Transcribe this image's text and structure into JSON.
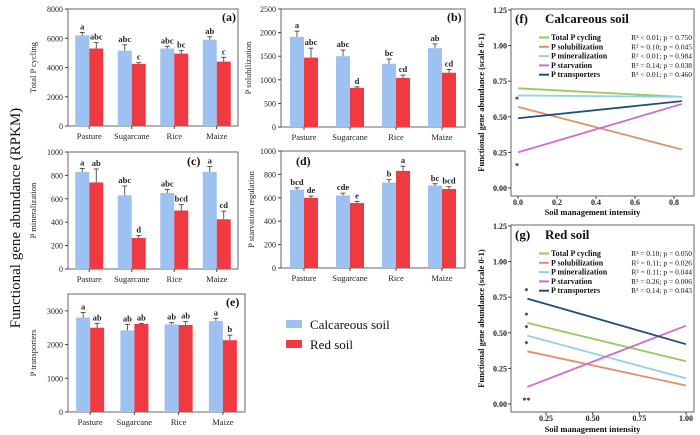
{
  "figure": {
    "shared_ylabel": "Functional gene abundance (RPKM)",
    "legend": [
      {
        "label": "Calcareous soil",
        "color": "#9dc2f2"
      },
      {
        "label": "Red soil",
        "color": "#ef3a42"
      }
    ]
  },
  "chart_data": [
    {
      "type": "bar",
      "panel": "(a)",
      "ylabel": "Total P cycling",
      "categories": [
        "Pasture",
        "Sugarcane",
        "Rice",
        "Maize"
      ],
      "ylim": [
        0,
        8000
      ],
      "yticks": [
        0,
        2000,
        4000,
        6000,
        8000
      ],
      "series": [
        {
          "name": "Calcareous soil",
          "values": [
            6200,
            5150,
            5300,
            5900
          ],
          "errors": [
            200,
            400,
            150,
            200
          ],
          "letters": [
            "a",
            "abc",
            "abc",
            "ab"
          ]
        },
        {
          "name": "Red soil",
          "values": [
            5300,
            4250,
            4950,
            4400
          ],
          "errors": [
            400,
            80,
            200,
            300
          ],
          "letters": [
            "abc",
            "c",
            "bc",
            "c"
          ]
        }
      ]
    },
    {
      "type": "bar",
      "panel": "(b)",
      "ylabel": "P solubilization",
      "categories": [
        "Pasture",
        "Sugarcane",
        "Rice",
        "Maize"
      ],
      "ylim": [
        0,
        2500
      ],
      "yticks": [
        0,
        500,
        1000,
        1500,
        2000,
        2500
      ],
      "series": [
        {
          "name": "Calcareous soil",
          "values": [
            1910,
            1500,
            1340,
            1670
          ],
          "errors": [
            120,
            130,
            100,
            90
          ],
          "letters": [
            "a",
            "abc",
            "bc",
            "ab"
          ]
        },
        {
          "name": "Red soil",
          "values": [
            1470,
            830,
            1040,
            1150
          ],
          "errors": [
            200,
            20,
            60,
            70
          ],
          "letters": [
            "abc",
            "d",
            "cd",
            "cd"
          ]
        }
      ]
    },
    {
      "type": "bar",
      "panel": "(c)",
      "ylabel": "P mineralization",
      "categories": [
        "Pasture",
        "Sugarcane",
        "Rice",
        "Maize"
      ],
      "ylim": [
        0,
        1000
      ],
      "yticks": [
        0,
        200,
        400,
        600,
        800,
        1000
      ],
      "series": [
        {
          "name": "Calcareous soil",
          "values": [
            830,
            630,
            650,
            830
          ],
          "errors": [
            30,
            80,
            30,
            45
          ],
          "letters": [
            "a",
            "abc",
            "abc",
            "a"
          ]
        },
        {
          "name": "Red soil",
          "values": [
            740,
            265,
            500,
            425
          ],
          "errors": [
            115,
            20,
            50,
            70
          ],
          "letters": [
            "ab",
            "d",
            "bcd",
            "cd"
          ]
        }
      ]
    },
    {
      "type": "bar",
      "panel": "(d)",
      "ylabel": "P starvation regulation",
      "categories": [
        "Pasture",
        "Sugarcane",
        "Rice",
        "Maize"
      ],
      "ylim": [
        0,
        1000
      ],
      "yticks": [
        0,
        200,
        400,
        600,
        800,
        1000
      ],
      "series": [
        {
          "name": "Calcareous soil",
          "values": [
            670,
            620,
            730,
            705
          ],
          "errors": [
            15,
            20,
            25,
            15
          ],
          "letters": [
            "bcd",
            "cde",
            "b",
            "bc"
          ]
        },
        {
          "name": "Red soil",
          "values": [
            600,
            555,
            830,
            675
          ],
          "errors": [
            15,
            15,
            40,
            20
          ],
          "letters": [
            "de",
            "e",
            "a",
            "bcd"
          ]
        }
      ]
    },
    {
      "type": "bar",
      "panel": "(e)",
      "ylabel": "P transporters",
      "categories": [
        "Pasture",
        "Sugarcane",
        "Rice",
        "Maize"
      ],
      "ylim": [
        0,
        3500
      ],
      "yticks": [
        0,
        1000,
        2000,
        3000
      ],
      "series": [
        {
          "name": "Calcareous soil",
          "values": [
            2800,
            2420,
            2600,
            2700
          ],
          "errors": [
            150,
            180,
            50,
            80
          ],
          "letters": [
            "a",
            "ab",
            "ab",
            "a"
          ]
        },
        {
          "name": "Red soil",
          "values": [
            2500,
            2610,
            2580,
            2130
          ],
          "errors": [
            130,
            20,
            100,
            150
          ],
          "letters": [
            "ab",
            "ab",
            "ab",
            "b"
          ]
        }
      ]
    },
    {
      "type": "line",
      "panel": "(f)",
      "title": "Calcareous soil",
      "xlabel": "Soil management intensity",
      "ylabel": "Functional gene abundance (scale 0-1)",
      "xlim": [
        -0.03,
        0.88
      ],
      "ylim": [
        0,
        1.25
      ],
      "xticks": [
        "0.0",
        "0.2",
        "0.4",
        "0.6",
        "0.8"
      ],
      "yticks": [
        "0.00",
        "0.25",
        "0.50",
        "0.75",
        "1.00",
        "1.25"
      ],
      "series": [
        {
          "name": "Total P cycling",
          "color": "#98c95a",
          "x": [
            0,
            0.84
          ],
          "y": [
            0.7,
            0.64
          ],
          "stat": "R² < 0.01; p = 0.750",
          "mark": ""
        },
        {
          "name": "P solubilization",
          "color": "#e0916a",
          "x": [
            0,
            0.84
          ],
          "y": [
            0.57,
            0.27
          ],
          "stat": "R² = 0.10; p = 0.045",
          "mark": "*"
        },
        {
          "name": "P mineralization",
          "color": "#92d2e0",
          "x": [
            0,
            0.84
          ],
          "y": [
            0.65,
            0.64
          ],
          "stat": "R² < 0.01; p = 0.984",
          "mark": ""
        },
        {
          "name": "P starvation",
          "color": "#d06bd3",
          "x": [
            0,
            0.84
          ],
          "y": [
            0.25,
            0.59
          ],
          "stat": "R² = 0.14; p = 0.038",
          "mark": "*"
        },
        {
          "name": "P transporters",
          "color": "#1f4f78",
          "x": [
            0,
            0.84
          ],
          "y": [
            0.49,
            0.61
          ],
          "stat": "R² < 0.01; p = 0.460",
          "mark": ""
        }
      ]
    },
    {
      "type": "line",
      "panel": "(g)",
      "title": "Red soil",
      "xlabel": "Soil management intensity",
      "ylabel": "Functional gene abundance (scale 0-1)",
      "xlim": [
        0.1,
        1.04
      ],
      "ylim": [
        0,
        1.25
      ],
      "xticks": [
        "0.25",
        "0.50",
        "0.75",
        "1.00"
      ],
      "yticks": [
        "0.00",
        "0.25",
        "0.50",
        "0.75",
        "1.00",
        "1.25"
      ],
      "series": [
        {
          "name": "Total P cycling",
          "color": "#98c95a",
          "x": [
            0.15,
            1.0
          ],
          "y": [
            0.57,
            0.3
          ],
          "stat": "R² = 0.10; p = 0.050",
          "mark": "*"
        },
        {
          "name": "P solubilization",
          "color": "#e0916a",
          "x": [
            0.15,
            1.0
          ],
          "y": [
            0.37,
            0.13
          ],
          "stat": "R² = 0.11; p = 0.026",
          "mark": "*"
        },
        {
          "name": "P mineralization",
          "color": "#92d2e0",
          "x": [
            0.15,
            1.0
          ],
          "y": [
            0.48,
            0.18
          ],
          "stat": "R² = 0.11; p = 0.044",
          "mark": "*"
        },
        {
          "name": "P starvation",
          "color": "#d06bd3",
          "x": [
            0.15,
            1.0
          ],
          "y": [
            0.12,
            0.55
          ],
          "stat": "R² = 0.26; p = 0.006",
          "mark": "**"
        },
        {
          "name": "P transporters",
          "color": "#1f4f78",
          "x": [
            0.15,
            1.0
          ],
          "y": [
            0.74,
            0.42
          ],
          "stat": "R² = 0.14; p = 0.043",
          "mark": "*"
        }
      ]
    }
  ]
}
